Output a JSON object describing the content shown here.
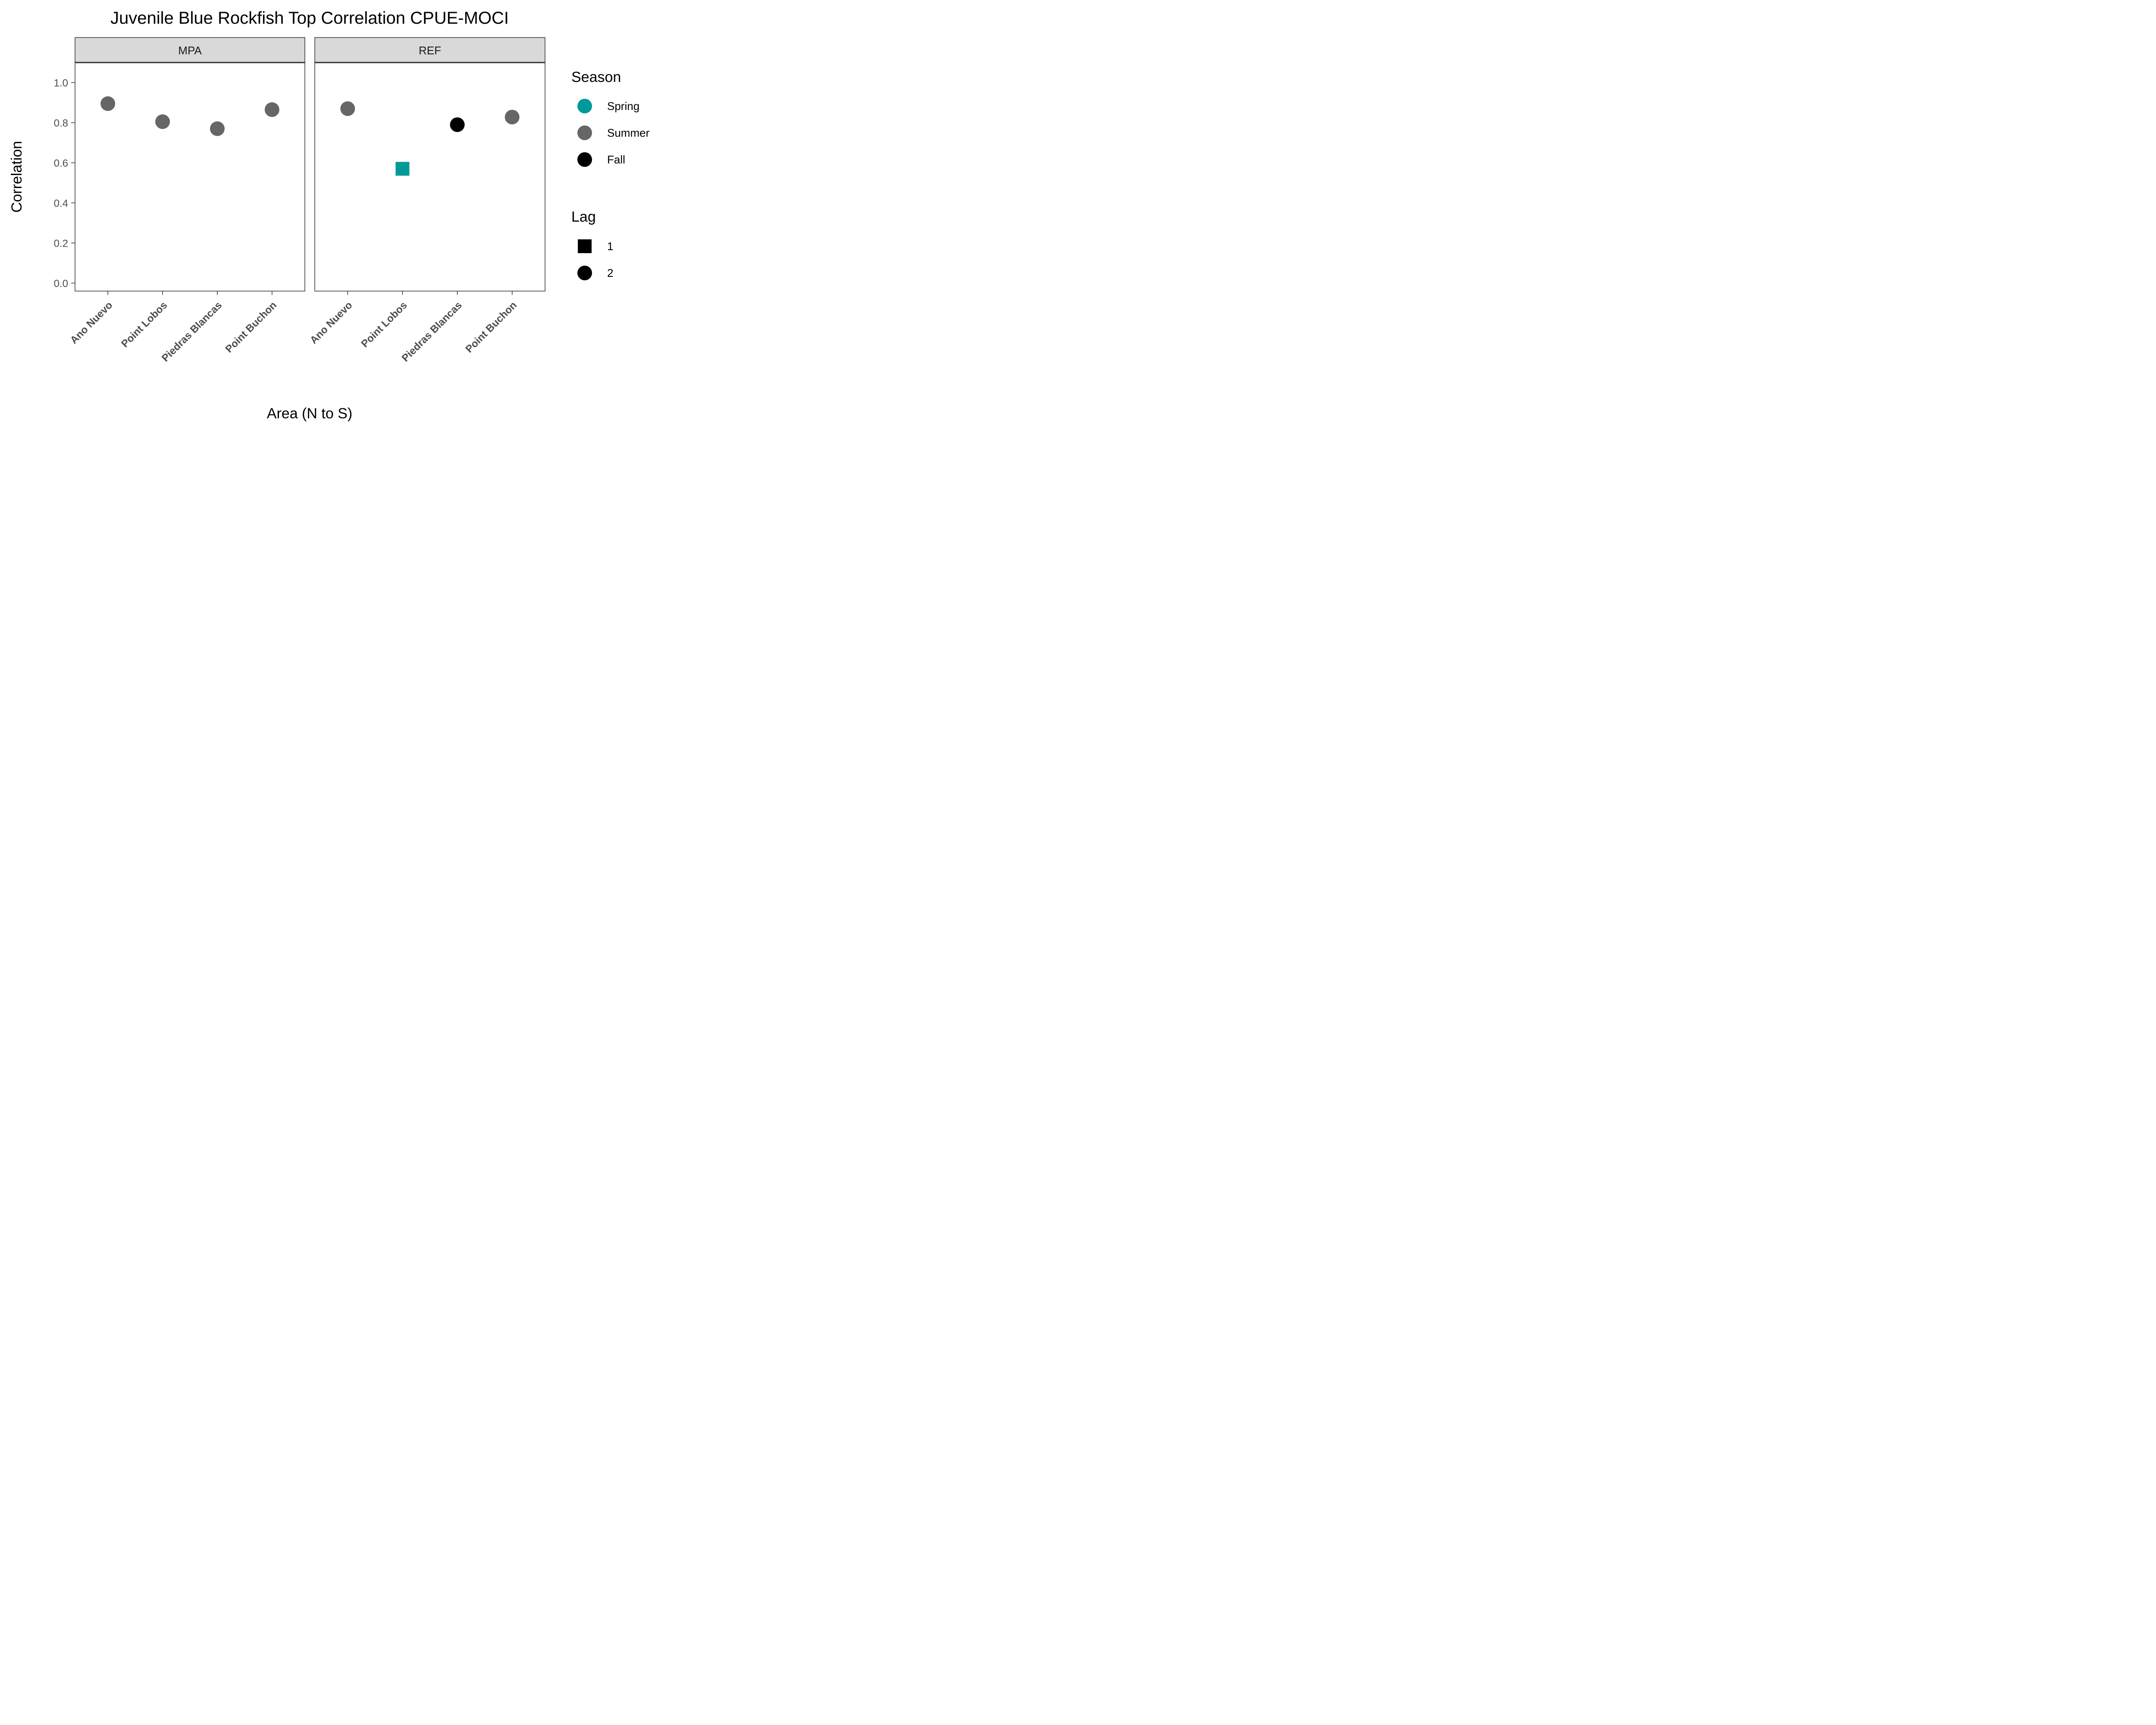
{
  "chart_data": {
    "type": "scatter",
    "title": "Juvenile Blue Rockfish Top Correlation CPUE-MOCI",
    "xlabel": "Area (N to S)",
    "ylabel": "Correlation",
    "ylim": [
      -0.04,
      1.1
    ],
    "yticks": [
      "0.0",
      "0.2",
      "0.4",
      "0.6",
      "0.8",
      "1.0"
    ],
    "categories": [
      "Ano Nuevo",
      "Point Lobos",
      "Piedras Blancas",
      "Point Buchon"
    ],
    "facets": [
      {
        "name": "MPA",
        "points": [
          {
            "area": "Ano Nuevo",
            "correlation": 0.895,
            "season": "Summer",
            "lag": "2"
          },
          {
            "area": "Point Lobos",
            "correlation": 0.805,
            "season": "Summer",
            "lag": "2"
          },
          {
            "area": "Piedras Blancas",
            "correlation": 0.77,
            "season": "Summer",
            "lag": "2"
          },
          {
            "area": "Point Buchon",
            "correlation": 0.865,
            "season": "Summer",
            "lag": "2"
          }
        ]
      },
      {
        "name": "REF",
        "points": [
          {
            "area": "Ano Nuevo",
            "correlation": 0.87,
            "season": "Summer",
            "lag": "2"
          },
          {
            "area": "Point Lobos",
            "correlation": 0.57,
            "season": "Spring",
            "lag": "1"
          },
          {
            "area": "Piedras Blancas",
            "correlation": 0.79,
            "season": "Fall",
            "lag": "2"
          },
          {
            "area": "Point Buchon",
            "correlation": 0.828,
            "season": "Summer",
            "lag": "2"
          }
        ]
      }
    ],
    "legend": {
      "placement": "right",
      "season": {
        "title": "Season",
        "items": [
          {
            "label": "Spring",
            "color": "#009999"
          },
          {
            "label": "Summer",
            "color": "#666666"
          },
          {
            "label": "Fall",
            "color": "#000000"
          }
        ]
      },
      "lag": {
        "title": "Lag",
        "items": [
          {
            "label": "1",
            "shape": "square"
          },
          {
            "label": "2",
            "shape": "circle"
          }
        ]
      }
    },
    "grid": false
  }
}
